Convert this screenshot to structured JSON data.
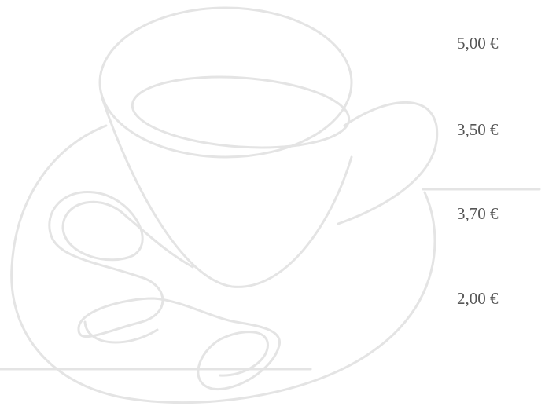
{
  "prices": [
    "5,00 €",
    "3,50 €",
    "3,70 €",
    "2,00 €"
  ]
}
